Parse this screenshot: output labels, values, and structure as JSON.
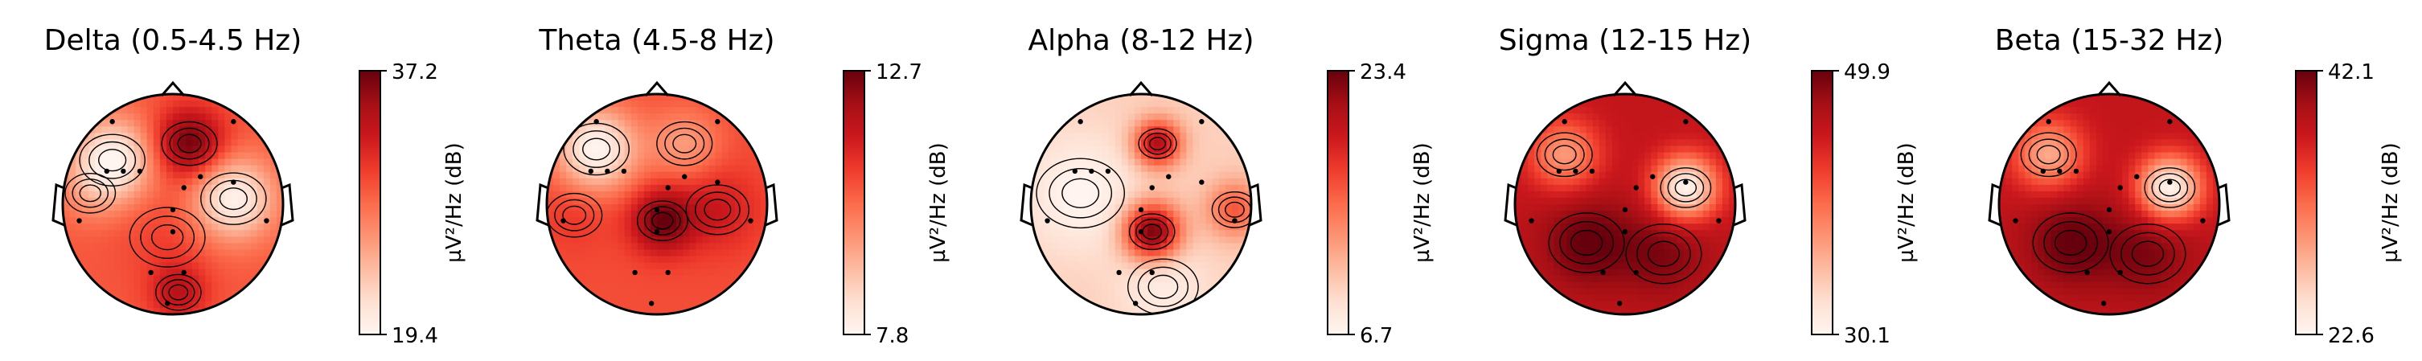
{
  "chart_data": [
    {
      "type": "heatmap",
      "title": "Delta (0.5-4.5 Hz)",
      "colorbar": {
        "min": 19.4,
        "max": 37.2,
        "label": "µV²/Hz (dB)",
        "ticks": [
          "37.2",
          "19.4"
        ]
      },
      "colormap": "Reds",
      "hotspots": [
        {
          "x": 0.15,
          "y": 0.55,
          "v": 1.0,
          "s": 0.22
        },
        {
          "x": -0.05,
          "y": -0.3,
          "v": 0.62,
          "s": 0.3
        },
        {
          "x": 0.05,
          "y": -0.8,
          "v": 0.8,
          "s": 0.18
        },
        {
          "x": -0.75,
          "y": 0.1,
          "v": 0.45,
          "s": 0.2
        }
      ],
      "coldspots": [
        {
          "x": -0.55,
          "y": 0.4,
          "v": 0.0,
          "s": 0.26
        },
        {
          "x": 0.55,
          "y": 0.05,
          "v": 0.02,
          "s": 0.26
        }
      ],
      "base": 0.55
    },
    {
      "type": "heatmap",
      "title": "Theta (4.5-8 Hz)",
      "colorbar": {
        "min": 7.8,
        "max": 12.7,
        "label": "µV²/Hz (dB)",
        "ticks": [
          "12.7",
          "7.8"
        ]
      },
      "colormap": "Reds",
      "hotspots": [
        {
          "x": 0.05,
          "y": -0.15,
          "v": 1.0,
          "s": 0.2
        },
        {
          "x": 0.55,
          "y": -0.05,
          "v": 0.75,
          "s": 0.25
        },
        {
          "x": -0.75,
          "y": -0.1,
          "v": 0.65,
          "s": 0.22
        }
      ],
      "coldspots": [
        {
          "x": -0.55,
          "y": 0.5,
          "v": 0.0,
          "s": 0.26
        },
        {
          "x": 0.25,
          "y": 0.55,
          "v": 0.35,
          "s": 0.22
        }
      ],
      "base": 0.58
    },
    {
      "type": "heatmap",
      "title": "Alpha (8-12 Hz)",
      "colorbar": {
        "min": 6.7,
        "max": 23.4,
        "label": "µV²/Hz (dB)",
        "ticks": [
          "23.4",
          "6.7"
        ]
      },
      "colormap": "Reds",
      "hotspots": [
        {
          "x": 0.1,
          "y": -0.25,
          "v": 1.0,
          "s": 0.18
        },
        {
          "x": 0.15,
          "y": 0.55,
          "v": 0.85,
          "s": 0.15
        },
        {
          "x": 0.85,
          "y": -0.05,
          "v": 0.55,
          "s": 0.18
        }
      ],
      "coldspots": [
        {
          "x": -0.55,
          "y": 0.1,
          "v": 0.0,
          "s": 0.35
        },
        {
          "x": 0.2,
          "y": -0.75,
          "v": 0.05,
          "s": 0.28
        }
      ],
      "base": 0.18
    },
    {
      "type": "heatmap",
      "title": "Sigma (12-15 Hz)",
      "colorbar": {
        "min": 30.1,
        "max": 49.9,
        "label": "µV²/Hz (dB)",
        "ticks": [
          "49.9",
          "30.1"
        ]
      },
      "colormap": "Reds",
      "hotspots": [
        {
          "x": -0.35,
          "y": -0.35,
          "v": 1.0,
          "s": 0.3
        },
        {
          "x": 0.35,
          "y": -0.45,
          "v": 0.95,
          "s": 0.3
        }
      ],
      "coldspots": [
        {
          "x": 0.55,
          "y": 0.15,
          "v": 0.0,
          "s": 0.2
        },
        {
          "x": -0.55,
          "y": 0.45,
          "v": 0.35,
          "s": 0.22
        }
      ],
      "base": 0.78
    },
    {
      "type": "heatmap",
      "title": "Beta (15-32 Hz)",
      "colorbar": {
        "min": 22.6,
        "max": 42.1,
        "label": "µV²/Hz (dB)",
        "ticks": [
          "42.1",
          "22.6"
        ]
      },
      "colormap": "Reds",
      "hotspots": [
        {
          "x": -0.35,
          "y": -0.35,
          "v": 1.0,
          "s": 0.3
        },
        {
          "x": 0.35,
          "y": -0.45,
          "v": 0.95,
          "s": 0.3
        }
      ],
      "coldspots": [
        {
          "x": 0.55,
          "y": 0.15,
          "v": 0.0,
          "s": 0.2
        },
        {
          "x": -0.55,
          "y": 0.45,
          "v": 0.3,
          "s": 0.22
        }
      ],
      "base": 0.78
    }
  ],
  "sensors": [
    [
      -0.55,
      0.75
    ],
    [
      0.55,
      0.75
    ],
    [
      -0.6,
      0.3
    ],
    [
      -0.45,
      0.3
    ],
    [
      -0.3,
      0.3
    ],
    [
      0.1,
      0.15
    ],
    [
      0.25,
      0.25
    ],
    [
      0.55,
      0.2
    ],
    [
      0.0,
      -0.05
    ],
    [
      0.0,
      -0.25
    ],
    [
      -0.85,
      -0.15
    ],
    [
      0.85,
      -0.15
    ],
    [
      -0.2,
      -0.62
    ],
    [
      0.1,
      -0.62
    ],
    [
      -0.05,
      -0.9
    ]
  ]
}
